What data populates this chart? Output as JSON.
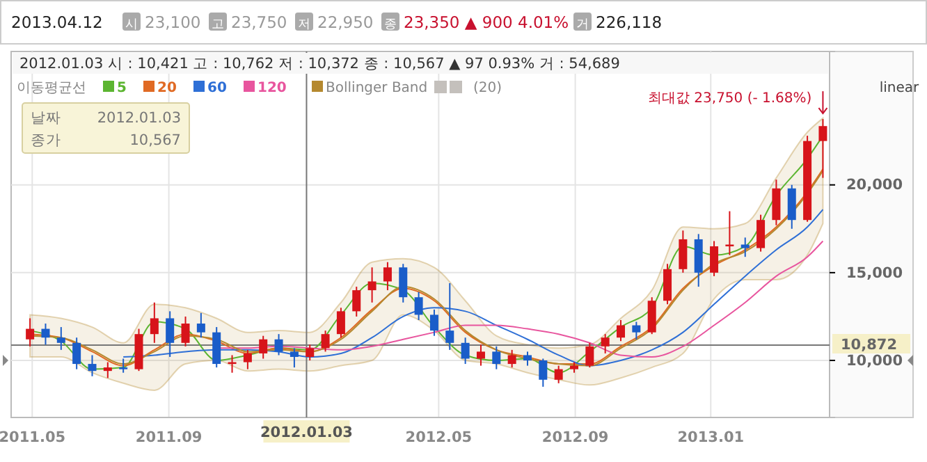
{
  "chart_data": {
    "type": "candlestick",
    "x": [
      "2011-04-29",
      "2011-05-13",
      "2011-05-27",
      "2011-06-10",
      "2011-06-24",
      "2011-07-08",
      "2011-07-22",
      "2011-08-05",
      "2011-08-19",
      "2011-09-02",
      "2011-09-16",
      "2011-09-30",
      "2011-10-14",
      "2011-10-28",
      "2011-11-11",
      "2011-11-25",
      "2011-12-09",
      "2011-12-23",
      "2012-01-06",
      "2012-01-20",
      "2012-02-03",
      "2012-02-17",
      "2012-03-02",
      "2012-03-16",
      "2012-03-30",
      "2012-04-13",
      "2012-04-27",
      "2012-05-11",
      "2012-05-25",
      "2012-06-08",
      "2012-06-22",
      "2012-07-06",
      "2012-07-20",
      "2012-08-03",
      "2012-08-17",
      "2012-08-31",
      "2012-09-14",
      "2012-09-28",
      "2012-10-12",
      "2012-10-26",
      "2012-11-09",
      "2012-11-23",
      "2012-12-07",
      "2012-12-21",
      "2013-01-04",
      "2013-01-18",
      "2013-02-01",
      "2013-02-15",
      "2013-03-01",
      "2013-03-15",
      "2013-03-29",
      "2013-04-12"
    ],
    "ohlc": [
      [
        11200,
        12400,
        10800,
        11800
      ],
      [
        11800,
        12100,
        10900,
        11300
      ],
      [
        11300,
        11900,
        10600,
        11000
      ],
      [
        11000,
        11300,
        9500,
        9800
      ],
      [
        9800,
        10300,
        9100,
        9400
      ],
      [
        9400,
        9900,
        9000,
        9600
      ],
      [
        9600,
        10100,
        9300,
        9500
      ],
      [
        9500,
        11800,
        9400,
        11500
      ],
      [
        11500,
        13300,
        11000,
        12400
      ],
      [
        12400,
        12800,
        10200,
        11000
      ],
      [
        11000,
        12500,
        10800,
        12100
      ],
      [
        12100,
        12700,
        11300,
        11600
      ],
      [
        11600,
        11900,
        9600,
        9800
      ],
      [
        9800,
        10300,
        9300,
        9900
      ],
      [
        9900,
        10600,
        9500,
        10400
      ],
      [
        10400,
        11400,
        10100,
        11200
      ],
      [
        11200,
        11500,
        10300,
        10500
      ],
      [
        10500,
        10700,
        9600,
        10200
      ],
      [
        10200,
        10900,
        10000,
        10700
      ],
      [
        10700,
        11700,
        10500,
        11500
      ],
      [
        11500,
        13000,
        11300,
        12800
      ],
      [
        12800,
        14200,
        12500,
        14000
      ],
      [
        14000,
        15300,
        13300,
        14500
      ],
      [
        14500,
        15600,
        14000,
        15300
      ],
      [
        15300,
        15500,
        13300,
        13600
      ],
      [
        13600,
        13900,
        12300,
        12600
      ],
      [
        12600,
        12900,
        11400,
        11700
      ],
      [
        11700,
        14400,
        10600,
        11000
      ],
      [
        11000,
        11300,
        9800,
        10100
      ],
      [
        10100,
        10900,
        9700,
        10500
      ],
      [
        10500,
        10800,
        9500,
        9800
      ],
      [
        9800,
        10600,
        9600,
        10300
      ],
      [
        10300,
        10500,
        9700,
        10000
      ],
      [
        10000,
        10100,
        8500,
        8900
      ],
      [
        8900,
        9700,
        8700,
        9500
      ],
      [
        9500,
        9900,
        9300,
        9700
      ],
      [
        9700,
        11000,
        9600,
        10800
      ],
      [
        10800,
        11500,
        10400,
        11300
      ],
      [
        11300,
        12300,
        11100,
        12000
      ],
      [
        12000,
        12200,
        11200,
        11600
      ],
      [
        11600,
        13600,
        11500,
        13400
      ],
      [
        13400,
        15500,
        13200,
        15200
      ],
      [
        15200,
        17400,
        15000,
        16900
      ],
      [
        16900,
        17200,
        14200,
        15000
      ],
      [
        15000,
        16800,
        14800,
        16500
      ],
      [
        16500,
        18500,
        16000,
        16600
      ],
      [
        16600,
        17000,
        15900,
        16400
      ],
      [
        16400,
        18300,
        16200,
        18000
      ],
      [
        18000,
        20300,
        17700,
        19800
      ],
      [
        19800,
        20000,
        17500,
        18000
      ],
      [
        18000,
        22800,
        17900,
        22500
      ],
      [
        22500,
        23750,
        20400,
        23350
      ]
    ],
    "series": [
      {
        "name": "Bollinger Band",
        "type": "line",
        "color": "#b5892f",
        "x": [
          "2011-04-29",
          "2011-05-27",
          "2011-06-24",
          "2011-07-22",
          "2011-08-19",
          "2011-09-16",
          "2011-10-14",
          "2011-11-11",
          "2011-12-09",
          "2012-01-06",
          "2012-02-03",
          "2012-03-02",
          "2012-03-30",
          "2012-04-27",
          "2012-05-25",
          "2012-06-22",
          "2012-07-20",
          "2012-08-17",
          "2012-09-14",
          "2012-10-12",
          "2012-11-09",
          "2012-12-07",
          "2013-01-04",
          "2013-02-01",
          "2013-03-01",
          "2013-03-29",
          "2013-04-12"
        ],
        "values": [
          11400,
          11300,
          10600,
          9800,
          10500,
          11400,
          11200,
          10500,
          10600,
          10500,
          11200,
          12800,
          14200,
          13500,
          11700,
          10600,
          10100,
          9800,
          9700,
          10700,
          11800,
          14000,
          15500,
          16200,
          17500,
          19500,
          20800
        ],
        "lower": [
          10200,
          10200,
          9300,
          8700,
          8300,
          9800,
          10000,
          9400,
          9500,
          9400,
          9700,
          10000,
          12600,
          11700,
          10000,
          9800,
          9300,
          8900,
          8600,
          9000,
          9600,
          10400,
          13500,
          14600,
          14600,
          16000,
          17800
        ],
        "upper": [
          12600,
          12400,
          11900,
          11000,
          13200,
          13000,
          12400,
          11600,
          11700,
          11600,
          13300,
          15600,
          15800,
          15300,
          13400,
          11400,
          10900,
          10700,
          10900,
          12400,
          14000,
          17600,
          17500,
          17800,
          20400,
          23000,
          23800
        ]
      },
      {
        "name": "5",
        "type": "line",
        "color": "#5cb531",
        "x": [
          "2011-04-29",
          "2011-05-27",
          "2011-06-24",
          "2011-07-22",
          "2011-08-19",
          "2011-09-16",
          "2011-10-14",
          "2011-11-11",
          "2011-12-09",
          "2012-01-06",
          "2012-02-03",
          "2012-03-02",
          "2012-03-30",
          "2012-04-27",
          "2012-05-25",
          "2012-06-22",
          "2012-07-20",
          "2012-08-17",
          "2012-09-14",
          "2012-10-12",
          "2012-11-09",
          "2012-12-07",
          "2013-01-04",
          "2013-02-01",
          "2013-03-01",
          "2013-03-29",
          "2013-04-12"
        ],
        "values": [
          11700,
          11100,
          9500,
          9600,
          12200,
          11800,
          10000,
          10300,
          10700,
          10600,
          12600,
          14400,
          14000,
          11900,
          10300,
          10000,
          10100,
          9300,
          10500,
          11900,
          13000,
          16500,
          16000,
          16500,
          19400,
          21500,
          22800
        ]
      },
      {
        "name": "20",
        "type": "line",
        "color": "#e06a24",
        "x": [
          "2011-04-29",
          "2011-05-27",
          "2011-06-24",
          "2011-07-22",
          "2011-08-19",
          "2011-09-16",
          "2011-10-14",
          "2011-11-11",
          "2011-12-09",
          "2012-01-06",
          "2012-02-03",
          "2012-03-02",
          "2012-03-30",
          "2012-04-27",
          "2012-05-25",
          "2012-06-22",
          "2012-07-20",
          "2012-08-17",
          "2012-09-14",
          "2012-10-12",
          "2012-11-09",
          "2012-12-07",
          "2013-01-04",
          "2013-02-01",
          "2013-03-01",
          "2013-03-29",
          "2013-04-12"
        ],
        "values": [
          11500,
          11300,
          10500,
          9700,
          10600,
          11500,
          11100,
          10400,
          10700,
          10500,
          11300,
          12900,
          14100,
          13400,
          11600,
          10600,
          10200,
          9800,
          9800,
          10800,
          11900,
          14100,
          15400,
          16300,
          17600,
          19600,
          20900
        ]
      },
      {
        "name": "60",
        "type": "line",
        "color": "#2e6fd6",
        "x": [
          "2011-07-22",
          "2011-08-19",
          "2011-09-16",
          "2011-10-14",
          "2011-11-11",
          "2011-12-09",
          "2012-01-06",
          "2012-02-03",
          "2012-03-02",
          "2012-03-30",
          "2012-04-27",
          "2012-05-25",
          "2012-06-22",
          "2012-07-20",
          "2012-08-17",
          "2012-09-14",
          "2012-10-12",
          "2012-11-09",
          "2012-12-07",
          "2013-01-04",
          "2013-02-01",
          "2013-03-01",
          "2013-03-29",
          "2013-04-12"
        ],
        "values": [
          10200,
          10300,
          10500,
          10600,
          10600,
          10500,
          10200,
          10400,
          11300,
          12500,
          13000,
          12800,
          12000,
          11200,
          10300,
          9700,
          10000,
          10600,
          11600,
          13200,
          14800,
          16300,
          17600,
          18600
        ]
      },
      {
        "name": "120",
        "type": "line",
        "color": "#e8559e",
        "x": [
          "2011-10-14",
          "2011-11-11",
          "2011-12-09",
          "2012-01-06",
          "2012-02-03",
          "2012-03-02",
          "2012-03-30",
          "2012-04-27",
          "2012-05-25",
          "2012-06-22",
          "2012-07-20",
          "2012-08-17",
          "2012-09-14",
          "2012-10-12",
          "2012-11-09",
          "2012-12-07",
          "2013-01-04",
          "2013-02-01",
          "2013-03-01",
          "2013-03-29",
          "2013-04-12"
        ],
        "values": [
          10700,
          10700,
          10800,
          10700,
          10600,
          10800,
          11200,
          11600,
          12000,
          12000,
          11800,
          11500,
          11000,
          10300,
          10200,
          10800,
          12000,
          13300,
          14800,
          15900,
          16800
        ]
      }
    ],
    "colors": [
      "#d7141a",
      "#1a5dc9",
      "#1a5dc9",
      "#1a5dc9",
      "#1a5dc9",
      "#d7141a",
      "#1a5dc9",
      "#d7141a",
      "#d7141a",
      "#1a5dc9",
      "#d7141a",
      "#1a5dc9",
      "#1a5dc9",
      "#d7141a",
      "#d7141a",
      "#d7141a",
      "#1a5dc9",
      "#1a5dc9",
      "#d7141a",
      "#d7141a",
      "#d7141a",
      "#d7141a",
      "#d7141a",
      "#d7141a",
      "#1a5dc9",
      "#1a5dc9",
      "#1a5dc9",
      "#1a5dc9",
      "#1a5dc9",
      "#d7141a",
      "#1a5dc9",
      "#d7141a",
      "#1a5dc9",
      "#1a5dc9",
      "#d7141a",
      "#d7141a",
      "#d7141a",
      "#d7141a",
      "#d7141a",
      "#1a5dc9",
      "#d7141a",
      "#d7141a",
      "#d7141a",
      "#1a5dc9",
      "#d7141a",
      "#d7141a",
      "#1a5dc9",
      "#d7141a",
      "#d7141a",
      "#1a5dc9",
      "#d7141a",
      "#d7141a"
    ],
    "legend_title": "이동평균선",
    "legend": "top left",
    "xlim": [
      "2011-04-12",
      "2013-04-18"
    ],
    "xticks": [
      {
        "value": "2011-05-01",
        "label": "2011.05"
      },
      {
        "value": "2011-09-01",
        "label": "2011.09"
      },
      {
        "value": "2012-05-01",
        "label": "2012.05"
      },
      {
        "value": "2012-09-01",
        "label": "2012.09"
      },
      {
        "value": "2013-01-01",
        "label": "2013.01"
      }
    ],
    "ylim": [
      6750,
      27600
    ],
    "yticks": [
      {
        "value": 10000,
        "label": "10,000"
      },
      {
        "value": 15000,
        "label": "15,000"
      },
      {
        "value": 20000,
        "label": "20,000"
      }
    ],
    "grid": true,
    "ref_lines": [
      {
        "axis": "x",
        "value": "2012-01-03",
        "label": "2012.01.03",
        "color": "#777777"
      },
      {
        "axis": "y",
        "value": 10872,
        "label": "10,872",
        "color": "#777777"
      }
    ],
    "annotations": [
      "2013.04.12",
      "시",
      "23,100",
      "고",
      "23,750",
      "저",
      "22,950",
      "종",
      "23,350 ▲ 900 4.01%",
      "거",
      "226,118",
      "2012.01.03 시 : 10,421 고 : 10,762 저 : 10,372 종 : 10,567 ▲ 97 0.93% 거 : 54,689",
      "(20)",
      "linear",
      {
        "text": "최대값 23,750 (- 1.68%)",
        "x": "2013-04-12",
        "y": 23750
      },
      "날짜",
      "2012.01.03",
      "종가",
      "10,567"
    ]
  }
}
